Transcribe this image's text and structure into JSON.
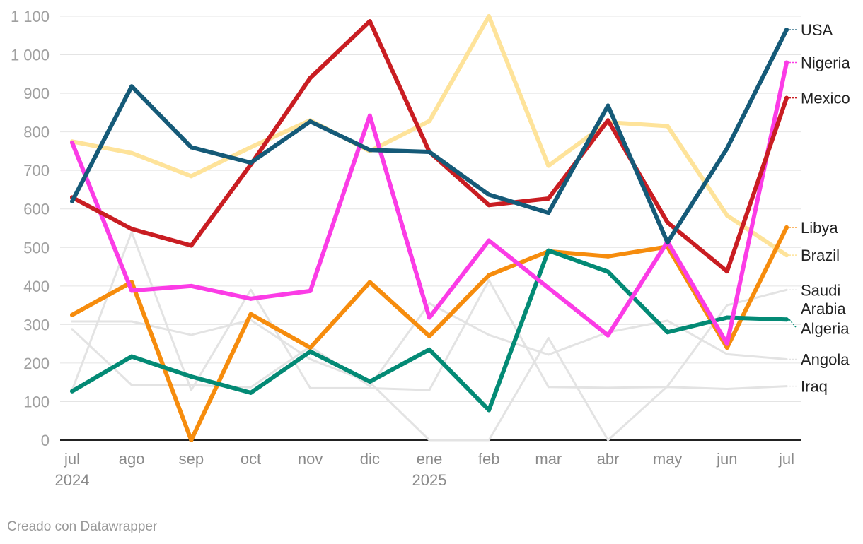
{
  "footer": "Creado con Datawrapper",
  "chart_data": {
    "type": "line",
    "x": [
      "jul",
      "ago",
      "sep",
      "oct",
      "nov",
      "dic",
      "ene",
      "feb",
      "mar",
      "abr",
      "may",
      "jun",
      "jul"
    ],
    "x_year_labels": [
      {
        "index": 0,
        "label": "2024"
      },
      {
        "index": 6,
        "label": "2025"
      }
    ],
    "ylim": [
      0,
      1100
    ],
    "yticks": [
      0,
      100,
      200,
      300,
      400,
      500,
      600,
      700,
      800,
      900,
      1000,
      1100
    ],
    "ytick_labels": [
      "0",
      "100",
      "200",
      "300",
      "400",
      "500",
      "600",
      "700",
      "800",
      "900",
      "1 000",
      "1 100"
    ],
    "grid": true,
    "legend": "direct labels at right end of lines",
    "series": [
      {
        "name": "Angola",
        "color": "#e3e3e3",
        "width": 3,
        "label_lines": [
          "Angola"
        ],
        "values": [
          288,
          143,
          143,
          137,
          243,
          140,
          355,
          273,
          222,
          280,
          310,
          223,
          210
        ]
      },
      {
        "name": "Iraq",
        "color": "#e3e3e3",
        "width": 3,
        "label_lines": [
          "Iraq"
        ],
        "values": [
          130,
          540,
          130,
          390,
          135,
          135,
          130,
          415,
          138,
          136,
          138,
          133,
          140
        ]
      },
      {
        "name": "Saudi Arabia",
        "color": "#e3e3e3",
        "width": 3,
        "label_lines": [
          "Saudi",
          "Arabia"
        ],
        "values": [
          308,
          308,
          273,
          312,
          210,
          150,
          0,
          0,
          265,
          0,
          140,
          350,
          390
        ]
      },
      {
        "name": "Brazil",
        "color": "#fee39a",
        "width": 6,
        "label_lines": [
          "Brazil"
        ],
        "values": [
          775,
          745,
          685,
          760,
          830,
          750,
          828,
          1100,
          712,
          825,
          815,
          583,
          480
        ]
      },
      {
        "name": "Libya",
        "color": "#f68c0d",
        "width": 6,
        "label_lines": [
          "Libya"
        ],
        "values": [
          325,
          410,
          0,
          327,
          240,
          410,
          270,
          428,
          490,
          477,
          502,
          240,
          552
        ]
      },
      {
        "name": "Algeria",
        "color": "#038a75",
        "width": 6,
        "label_lines": [
          "Algeria"
        ],
        "values": [
          127,
          217,
          165,
          123,
          230,
          152,
          235,
          78,
          492,
          437,
          280,
          318,
          313
        ]
      },
      {
        "name": "Nigeria",
        "color": "#fb3ce6",
        "width": 6,
        "label_lines": [
          "Nigeria"
        ],
        "values": [
          772,
          388,
          400,
          367,
          387,
          842,
          318,
          518,
          395,
          272,
          515,
          250,
          980
        ]
      },
      {
        "name": "Mexico",
        "color": "#c91d22",
        "width": 6,
        "label_lines": [
          "Mexico"
        ],
        "values": [
          630,
          548,
          505,
          715,
          940,
          1087,
          748,
          610,
          627,
          830,
          565,
          438,
          888
        ]
      },
      {
        "name": "USA",
        "color": "#155a78",
        "width": 6,
        "label_lines": [
          "USA"
        ],
        "values": [
          620,
          918,
          760,
          720,
          827,
          753,
          748,
          637,
          590,
          868,
          513,
          757,
          1065
        ]
      }
    ]
  }
}
